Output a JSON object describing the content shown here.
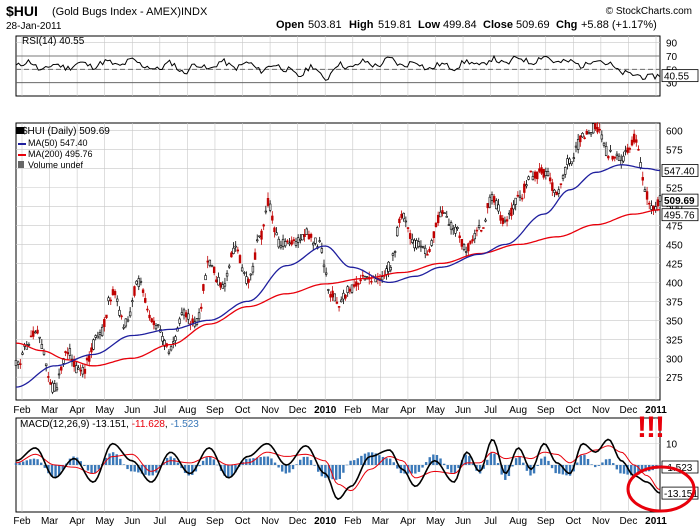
{
  "header": {
    "title": "$HUI",
    "subtitle": "(Gold Bugs Index - AMEX)",
    "exchange": "INDX",
    "date": "28-Jan-2011",
    "watermark": "© StockCharts.com",
    "open_label": "Open",
    "open": "503.81",
    "high_label": "High",
    "high": "519.81",
    "low_label": "Low",
    "low": "499.84",
    "close_label": "Close",
    "close": "509.69",
    "chg_label": "Chg",
    "chg": "+5.88 (+1.17%)"
  },
  "annotation": {
    "text": "!!!",
    "color": "#e8000b"
  },
  "colors": {
    "ma50": "#1f1f9e",
    "ma200": "#e8000b",
    "hist": "#3a78b8",
    "grid": "#c8c8c8",
    "bull": "#000000",
    "bear": "#c00000"
  },
  "chart_data": [
    {
      "type": "line",
      "name": "rsi_panel",
      "legend": "RSI(14) 40.55",
      "ylim": [
        10,
        100
      ],
      "yticks": [
        "90",
        "70",
        "50",
        "30"
      ],
      "reference_lines": [
        30,
        50,
        70
      ],
      "last_value_label": "40.55",
      "anchors": [
        [
          0,
          55
        ],
        [
          2,
          62
        ],
        [
          4,
          48
        ],
        [
          6,
          58
        ],
        [
          8,
          52
        ],
        [
          10,
          60
        ],
        [
          12,
          54
        ],
        [
          14,
          62
        ],
        [
          16,
          55
        ],
        [
          18,
          64
        ],
        [
          20,
          55
        ],
        [
          22,
          50
        ],
        [
          24,
          60
        ],
        [
          26,
          45
        ],
        [
          28,
          58
        ],
        [
          30,
          50
        ],
        [
          32,
          62
        ],
        [
          34,
          52
        ],
        [
          36,
          60
        ],
        [
          38,
          48
        ],
        [
          40,
          57
        ],
        [
          42,
          50
        ],
        [
          44,
          40
        ],
        [
          46,
          55
        ],
        [
          48,
          35
        ],
        [
          50,
          58
        ],
        [
          52,
          52
        ],
        [
          54,
          62
        ],
        [
          56,
          55
        ],
        [
          58,
          66
        ],
        [
          60,
          55
        ],
        [
          62,
          62
        ],
        [
          64,
          50
        ],
        [
          66,
          58
        ],
        [
          68,
          52
        ],
        [
          70,
          62
        ],
        [
          72,
          55
        ],
        [
          74,
          66
        ],
        [
          76,
          58
        ],
        [
          78,
          68
        ],
        [
          80,
          60
        ],
        [
          82,
          70
        ],
        [
          84,
          60
        ],
        [
          86,
          62
        ],
        [
          88,
          55
        ],
        [
          90,
          66
        ],
        [
          92,
          58
        ],
        [
          94,
          45
        ],
        [
          96,
          42
        ],
        [
          98,
          38
        ],
        [
          100,
          40.55
        ]
      ]
    },
    {
      "type": "candlestick",
      "name": "price_panel",
      "title": "$HUI (Daily) 509.69",
      "series": [
        {
          "name": "MA(50)",
          "legend": "MA(50) 547.40",
          "last": 547.4,
          "anchors": [
            [
              0,
              262
            ],
            [
              6,
              290
            ],
            [
              12,
              305
            ],
            [
              18,
              330
            ],
            [
              24,
              338
            ],
            [
              30,
              350
            ],
            [
              36,
              375
            ],
            [
              42,
              422
            ],
            [
              48,
              448
            ],
            [
              52,
              420
            ],
            [
              58,
              400
            ],
            [
              62,
              408
            ],
            [
              66,
              420
            ],
            [
              72,
              437
            ],
            [
              76,
              450
            ],
            [
              82,
              490
            ],
            [
              86,
              522
            ],
            [
              90,
              545
            ],
            [
              94,
              555
            ],
            [
              98,
              550
            ],
            [
              100,
              547.4
            ]
          ]
        },
        {
          "name": "MA(200)",
          "legend": "MA(200) 495.76",
          "last": 495.76,
          "anchors": [
            [
              0,
              320
            ],
            [
              4,
              310
            ],
            [
              8,
              298
            ],
            [
              12,
              290
            ],
            [
              18,
              300
            ],
            [
              24,
              318
            ],
            [
              30,
              345
            ],
            [
              36,
              368
            ],
            [
              42,
              385
            ],
            [
              48,
              398
            ],
            [
              54,
              405
            ],
            [
              60,
              413
            ],
            [
              66,
              425
            ],
            [
              72,
              438
            ],
            [
              78,
              450
            ],
            [
              84,
              460
            ],
            [
              90,
              476
            ],
            [
              96,
              490
            ],
            [
              100,
              495.76
            ]
          ]
        },
        {
          "name": "price",
          "legend": "$HUI (Daily) 509.69",
          "last": 509.69,
          "anchors": [
            [
              0,
              295
            ],
            [
              3,
              335
            ],
            [
              6,
              260
            ],
            [
              8,
              310
            ],
            [
              10,
              280
            ],
            [
              13,
              330
            ],
            [
              15,
              385
            ],
            [
              17,
              345
            ],
            [
              19,
              400
            ],
            [
              21,
              350
            ],
            [
              24,
              310
            ],
            [
              26,
              360
            ],
            [
              28,
              345
            ],
            [
              30,
              425
            ],
            [
              32,
              395
            ],
            [
              34,
              445
            ],
            [
              36,
              400
            ],
            [
              38,
              460
            ],
            [
              39,
              505
            ],
            [
              41,
              450
            ],
            [
              43,
              450
            ],
            [
              45,
              465
            ],
            [
              47,
              450
            ],
            [
              49,
              385
            ],
            [
              50,
              372
            ],
            [
              52,
              390
            ],
            [
              54,
              410
            ],
            [
              56,
              400
            ],
            [
              58,
              420
            ],
            [
              60,
              490
            ],
            [
              62,
              450
            ],
            [
              64,
              440
            ],
            [
              66,
              490
            ],
            [
              68,
              470
            ],
            [
              70,
              445
            ],
            [
              72,
              470
            ],
            [
              74,
              510
            ],
            [
              76,
              478
            ],
            [
              78,
              512
            ],
            [
              80,
              540
            ],
            [
              82,
              545
            ],
            [
              84,
              520
            ],
            [
              86,
              560
            ],
            [
              88,
              590
            ],
            [
              90,
              605
            ],
            [
              92,
              570
            ],
            [
              94,
              560
            ],
            [
              96,
              590
            ],
            [
              98,
              515
            ],
            [
              99,
              495
            ],
            [
              100,
              509.69
            ]
          ]
        }
      ],
      "volume_legend": "Volume undef",
      "ylim": [
        245,
        610
      ],
      "yticks": [
        "600",
        "575",
        "550",
        "525",
        "500",
        "475",
        "450",
        "425",
        "400",
        "375",
        "350",
        "325",
        "300",
        "275"
      ],
      "last_labels": [
        "547.40",
        "509.69",
        "495.76"
      ]
    },
    {
      "type": "line",
      "name": "macd_panel",
      "legend_prefix": "MACD(12,26,9) -13.151, ",
      "legend_signal": "-11.628",
      "legend_sep": ", ",
      "legend_hist": "-1.523",
      "ylim": [
        -22,
        22
      ],
      "yticks": [
        "10",
        "0"
      ],
      "last_labels": [
        "-1.523",
        "-13.151"
      ],
      "series": [
        {
          "name": "MACD",
          "last": -13.151,
          "anchors": [
            [
              0,
              2
            ],
            [
              3,
              8
            ],
            [
              6,
              -6
            ],
            [
              9,
              3
            ],
            [
              12,
              -8
            ],
            [
              15,
              10
            ],
            [
              18,
              2
            ],
            [
              21,
              -8
            ],
            [
              24,
              6
            ],
            [
              27,
              -4
            ],
            [
              30,
              8
            ],
            [
              33,
              -6
            ],
            [
              36,
              4
            ],
            [
              39,
              10
            ],
            [
              42,
              0
            ],
            [
              45,
              9
            ],
            [
              48,
              -4
            ],
            [
              50,
              -16
            ],
            [
              52,
              -10
            ],
            [
              55,
              4
            ],
            [
              58,
              7
            ],
            [
              60,
              -2
            ],
            [
              62,
              -10
            ],
            [
              65,
              2
            ],
            [
              68,
              -8
            ],
            [
              70,
              6
            ],
            [
              72,
              -3
            ],
            [
              74,
              12
            ],
            [
              76,
              -4
            ],
            [
              78,
              8
            ],
            [
              80,
              -2
            ],
            [
              82,
              10
            ],
            [
              84,
              1
            ],
            [
              86,
              -4
            ],
            [
              88,
              10
            ],
            [
              90,
              6
            ],
            [
              92,
              12
            ],
            [
              94,
              2
            ],
            [
              96,
              -5
            ],
            [
              98,
              -8
            ],
            [
              100,
              -13.151
            ]
          ]
        },
        {
          "name": "Signal",
          "last": -11.628,
          "anchors": [
            [
              0,
              1
            ],
            [
              3,
              5
            ],
            [
              6,
              0
            ],
            [
              9,
              -1
            ],
            [
              12,
              -4
            ],
            [
              15,
              4
            ],
            [
              18,
              5
            ],
            [
              21,
              -3
            ],
            [
              24,
              2
            ],
            [
              27,
              1
            ],
            [
              30,
              4
            ],
            [
              33,
              0
            ],
            [
              36,
              1
            ],
            [
              39,
              6
            ],
            [
              42,
              4
            ],
            [
              45,
              5
            ],
            [
              48,
              2
            ],
            [
              50,
              -9
            ],
            [
              52,
              -12
            ],
            [
              55,
              -2
            ],
            [
              58,
              4
            ],
            [
              60,
              2
            ],
            [
              62,
              -6
            ],
            [
              65,
              -3
            ],
            [
              68,
              -4
            ],
            [
              70,
              1
            ],
            [
              72,
              1
            ],
            [
              74,
              6
            ],
            [
              76,
              3
            ],
            [
              78,
              4
            ],
            [
              80,
              3
            ],
            [
              82,
              6
            ],
            [
              84,
              5
            ],
            [
              86,
              1
            ],
            [
              88,
              5
            ],
            [
              90,
              7
            ],
            [
              92,
              9
            ],
            [
              94,
              6
            ],
            [
              96,
              0
            ],
            [
              98,
              -5
            ],
            [
              100,
              -11.628
            ]
          ]
        }
      ]
    }
  ],
  "x_axis": {
    "labels": [
      "Feb",
      "Mar",
      "Apr",
      "May",
      "Jun",
      "Jul",
      "Aug",
      "Sep",
      "Oct",
      "Nov",
      "Dec",
      "2010",
      "Feb",
      "Mar",
      "Apr",
      "May",
      "Jun",
      "Jul",
      "Aug",
      "Sep",
      "Oct",
      "Nov",
      "Dec",
      "2011"
    ],
    "bold": [
      "2010",
      "2011"
    ]
  }
}
